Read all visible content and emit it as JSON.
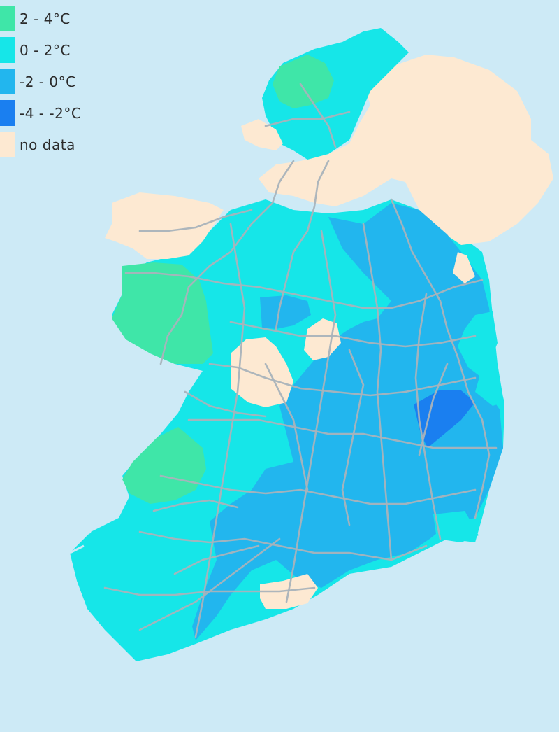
{
  "legend": {
    "items": [
      {
        "label": "2 - 4°C",
        "color": "#3fe6a8"
      },
      {
        "label": "0 - 2°C",
        "color": "#16e6e8"
      },
      {
        "label": "-2 - 0°C",
        "color": "#22b6ee"
      },
      {
        "label": "-4 - -2°C",
        "color": "#1a7ff0"
      },
      {
        "label": "no data",
        "color": "#fde9d2"
      }
    ]
  },
  "colors": {
    "sea": "#cdeaf6",
    "road": "#a9b3bb"
  }
}
